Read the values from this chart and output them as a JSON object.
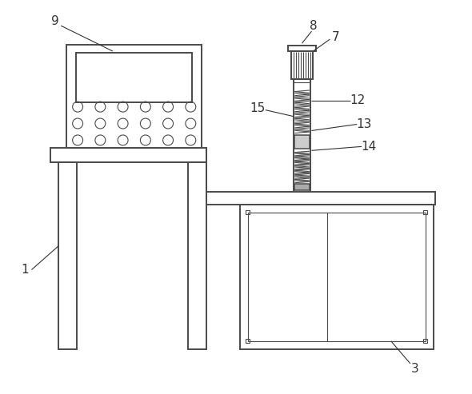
{
  "bg_color": "#ffffff",
  "line_color": "#4a4a4a",
  "label_color": "#333333",
  "line_width": 1.4,
  "thin_line": 0.8,
  "med_line": 1.1
}
